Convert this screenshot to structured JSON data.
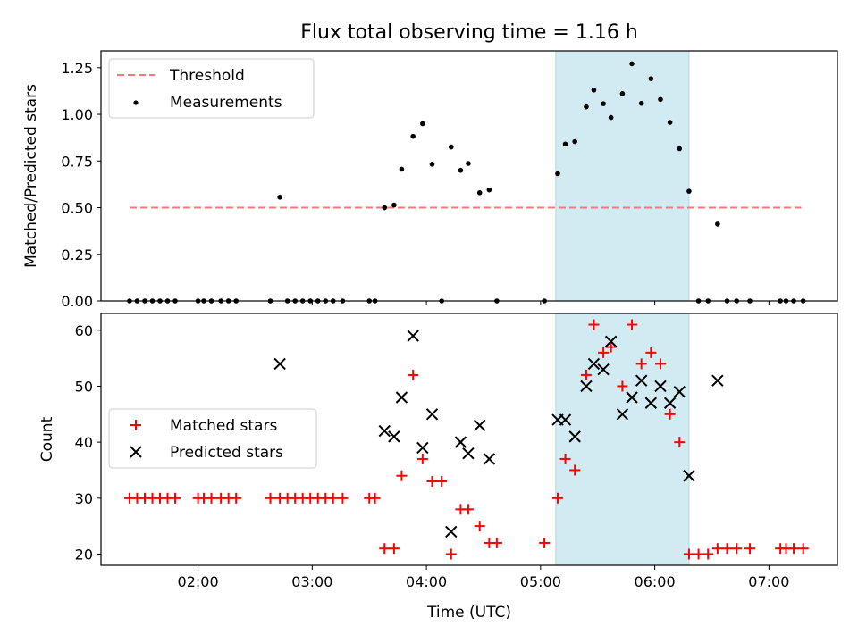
{
  "chart_data": [
    {
      "type": "scatter",
      "title": "Flux total observing time = 1.16 h",
      "xlabel": "",
      "ylabel": "Matched/Predicted stars",
      "ylim": [
        0,
        1.34
      ],
      "xlim": [
        "01:09",
        "07:36"
      ],
      "yticks": [
        "0.00",
        "0.25",
        "0.50",
        "0.75",
        "1.00",
        "1.25"
      ],
      "shaded_interval": [
        "05:08",
        "06:18"
      ],
      "legend": {
        "placement": "top-left",
        "entries": [
          "Threshold",
          "Measurements"
        ]
      },
      "threshold": {
        "name": "Threshold",
        "value": 0.5,
        "x_range": [
          "01:24",
          "07:17"
        ],
        "color": "#f37a7a",
        "style": "dashed"
      },
      "series": [
        {
          "name": "Measurements",
          "color": "#000000",
          "marker": "dot",
          "points": [
            [
              "01:24",
              0
            ],
            [
              "01:28",
              0
            ],
            [
              "01:32",
              0
            ],
            [
              "01:36",
              0
            ],
            [
              "01:40",
              0
            ],
            [
              "01:44",
              0
            ],
            [
              "01:48",
              0
            ],
            [
              "02:00",
              0
            ],
            [
              "02:03",
              0
            ],
            [
              "02:07",
              0
            ],
            [
              "02:12",
              0
            ],
            [
              "02:16",
              0
            ],
            [
              "02:20",
              0
            ],
            [
              "02:38",
              0
            ],
            [
              "02:43",
              0.556
            ],
            [
              "02:47",
              0
            ],
            [
              "02:51",
              0
            ],
            [
              "02:55",
              0
            ],
            [
              "02:59",
              0
            ],
            [
              "03:03",
              0
            ],
            [
              "03:07",
              0
            ],
            [
              "03:11",
              0
            ],
            [
              "03:16",
              0
            ],
            [
              "03:30",
              0
            ],
            [
              "03:33",
              0
            ],
            [
              "03:38",
              0.5
            ],
            [
              "03:43",
              0.514
            ],
            [
              "03:47",
              0.706
            ],
            [
              "03:53",
              0.882
            ],
            [
              "03:58",
              0.95
            ],
            [
              "04:03",
              0.733
            ],
            [
              "04:08",
              0
            ],
            [
              "04:13",
              0.825
            ],
            [
              "04:18",
              0.7
            ],
            [
              "04:22",
              0.737
            ],
            [
              "04:28",
              0.58
            ],
            [
              "04:33",
              0.595
            ],
            [
              "04:37",
              0
            ],
            [
              "05:02",
              0
            ],
            [
              "05:09",
              0.682
            ],
            [
              "05:13",
              0.841
            ],
            [
              "05:18",
              0.854
            ],
            [
              "05:24",
              1.04
            ],
            [
              "05:28",
              1.13
            ],
            [
              "05:33",
              1.057
            ],
            [
              "05:37",
              0.983
            ],
            [
              "05:43",
              1.111
            ],
            [
              "05:48",
              1.271
            ],
            [
              "05:53",
              1.059
            ],
            [
              "05:58",
              1.191
            ],
            [
              "06:03",
              1.08
            ],
            [
              "06:08",
              0.957
            ],
            [
              "06:13",
              0.816
            ],
            [
              "06:18",
              0.588
            ],
            [
              "06:23",
              0
            ],
            [
              "06:28",
              0
            ],
            [
              "06:33",
              0.412
            ],
            [
              "06:38",
              0
            ],
            [
              "06:43",
              0
            ],
            [
              "06:50",
              0
            ],
            [
              "07:06",
              0
            ],
            [
              "07:09",
              0
            ],
            [
              "07:13",
              0
            ],
            [
              "07:18",
              0
            ]
          ]
        }
      ]
    },
    {
      "type": "scatter",
      "title": "",
      "xlabel": "Time (UTC)",
      "ylabel": "Count",
      "ylim": [
        18,
        63
      ],
      "xlim": [
        "01:09",
        "07:36"
      ],
      "yticks": [
        "20",
        "30",
        "40",
        "50",
        "60"
      ],
      "xticks": [
        "02:00",
        "03:00",
        "04:00",
        "05:00",
        "06:00",
        "07:00"
      ],
      "shaded_interval": [
        "05:08",
        "06:18"
      ],
      "legend": {
        "placement": "center-left",
        "entries": [
          "Matched stars",
          "Predicted stars"
        ]
      },
      "series": [
        {
          "name": "Matched stars",
          "color": "#ff0000",
          "marker": "plus",
          "points": [
            [
              "01:24",
              30
            ],
            [
              "01:28",
              30
            ],
            [
              "01:32",
              30
            ],
            [
              "01:36",
              30
            ],
            [
              "01:40",
              30
            ],
            [
              "01:44",
              30
            ],
            [
              "01:48",
              30
            ],
            [
              "02:00",
              30
            ],
            [
              "02:03",
              30
            ],
            [
              "02:07",
              30
            ],
            [
              "02:12",
              30
            ],
            [
              "02:16",
              30
            ],
            [
              "02:20",
              30
            ],
            [
              "02:38",
              30
            ],
            [
              "02:43",
              30
            ],
            [
              "02:47",
              30
            ],
            [
              "02:51",
              30
            ],
            [
              "02:55",
              30
            ],
            [
              "02:59",
              30
            ],
            [
              "03:03",
              30
            ],
            [
              "03:07",
              30
            ],
            [
              "03:11",
              30
            ],
            [
              "03:16",
              30
            ],
            [
              "03:30",
              30
            ],
            [
              "03:33",
              30
            ],
            [
              "03:38",
              21
            ],
            [
              "03:43",
              21
            ],
            [
              "03:47",
              34
            ],
            [
              "03:53",
              52
            ],
            [
              "03:58",
              37
            ],
            [
              "04:03",
              33
            ],
            [
              "04:08",
              33
            ],
            [
              "04:13",
              20
            ],
            [
              "04:18",
              28
            ],
            [
              "04:22",
              28
            ],
            [
              "04:28",
              25
            ],
            [
              "04:33",
              22
            ],
            [
              "04:37",
              22
            ],
            [
              "05:02",
              22
            ],
            [
              "05:09",
              30
            ],
            [
              "05:13",
              37
            ],
            [
              "05:18",
              35
            ],
            [
              "05:24",
              52
            ],
            [
              "05:28",
              61
            ],
            [
              "05:33",
              56
            ],
            [
              "05:37",
              57
            ],
            [
              "05:43",
              50
            ],
            [
              "05:48",
              61
            ],
            [
              "05:53",
              54
            ],
            [
              "05:58",
              56
            ],
            [
              "06:03",
              54
            ],
            [
              "06:08",
              45
            ],
            [
              "06:13",
              40
            ],
            [
              "06:18",
              20
            ],
            [
              "06:23",
              20
            ],
            [
              "06:28",
              20
            ],
            [
              "06:33",
              21
            ],
            [
              "06:38",
              21
            ],
            [
              "06:43",
              21
            ],
            [
              "06:50",
              21
            ],
            [
              "07:06",
              21
            ],
            [
              "07:09",
              21
            ],
            [
              "07:13",
              21
            ],
            [
              "07:18",
              21
            ]
          ]
        },
        {
          "name": "Predicted stars",
          "color": "#000000",
          "marker": "x",
          "points": [
            [
              "02:43",
              54
            ],
            [
              "03:38",
              42
            ],
            [
              "03:43",
              41
            ],
            [
              "03:47",
              48
            ],
            [
              "03:53",
              59
            ],
            [
              "03:58",
              39
            ],
            [
              "04:03",
              45
            ],
            [
              "04:13",
              24
            ],
            [
              "04:18",
              40
            ],
            [
              "04:22",
              38
            ],
            [
              "04:28",
              43
            ],
            [
              "04:33",
              37
            ],
            [
              "05:09",
              44
            ],
            [
              "05:13",
              44
            ],
            [
              "05:18",
              41
            ],
            [
              "05:24",
              50
            ],
            [
              "05:28",
              54
            ],
            [
              "05:33",
              53
            ],
            [
              "05:37",
              58
            ],
            [
              "05:43",
              45
            ],
            [
              "05:48",
              48
            ],
            [
              "05:53",
              51
            ],
            [
              "05:58",
              47
            ],
            [
              "06:03",
              50
            ],
            [
              "06:08",
              47
            ],
            [
              "06:13",
              49
            ],
            [
              "06:18",
              34
            ],
            [
              "06:33",
              51
            ]
          ]
        }
      ]
    }
  ]
}
